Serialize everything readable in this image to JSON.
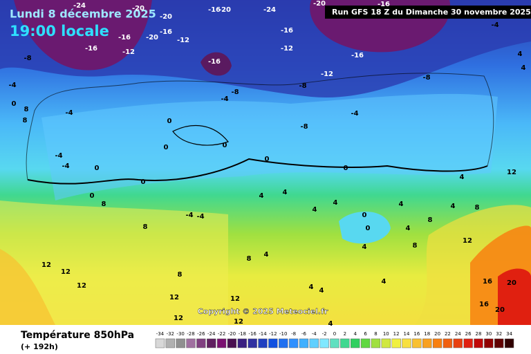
{
  "header": {
    "date": "Lundi 8 décembre 2025",
    "time": "19:00 locale",
    "run": "Run GFS 18 Z du Dimanche 30 novembre 2025",
    "copyright": "Copyright © 2025 Meteociel.fr"
  },
  "footer": {
    "title": "Température 850hPa",
    "lead": "(+ 192h)"
  },
  "legend": {
    "values": [
      -34,
      -32,
      -30,
      -28,
      -26,
      -24,
      -22,
      -20,
      -18,
      -16,
      -14,
      -12,
      -10,
      -8,
      -6,
      -4,
      -2,
      0,
      2,
      4,
      6,
      8,
      10,
      12,
      14,
      16,
      18,
      20,
      22,
      24,
      26,
      28,
      30,
      32,
      34
    ],
    "colors": [
      "#d8d8d8",
      "#b0b0b0",
      "#909090",
      "#a070a0",
      "#804080",
      "#602060",
      "#7a1070",
      "#4a1050",
      "#3a2080",
      "#3030a0",
      "#2040c0",
      "#1050e0",
      "#2070f0",
      "#3090ff",
      "#40b0ff",
      "#60d0ff",
      "#80e8ff",
      "#60e0c0",
      "#40d890",
      "#30d060",
      "#60d840",
      "#a0e040",
      "#d0e840",
      "#f0f040",
      "#f8e040",
      "#f8c030",
      "#f8a020",
      "#f88010",
      "#f06010",
      "#e84010",
      "#e02010",
      "#c00808",
      "#900000",
      "#600000",
      "#300000"
    ]
  },
  "map_labels": [
    -24,
    -20,
    -20,
    -16,
    -16,
    -20,
    -12,
    -16,
    -12,
    -8,
    -4,
    -4,
    -4,
    -4,
    0,
    8,
    8,
    0,
    0,
    8,
    8,
    0,
    0,
    0,
    0,
    -4,
    -8,
    -16,
    -16,
    -12,
    -12,
    -16,
    -8,
    -8,
    -4,
    -8,
    -4,
    4,
    4,
    12,
    4,
    0,
    0,
    4,
    4,
    4,
    4,
    0,
    0,
    4,
    4,
    8,
    8,
    4,
    12,
    8,
    4,
    4,
    12,
    12,
    12,
    8,
    8,
    4,
    12,
    12,
    12,
    12,
    4,
    4,
    4,
    16,
    20,
    16,
    20,
    -4,
    -4,
    -20,
    -16,
    -16,
    -20,
    -24
  ]
}
